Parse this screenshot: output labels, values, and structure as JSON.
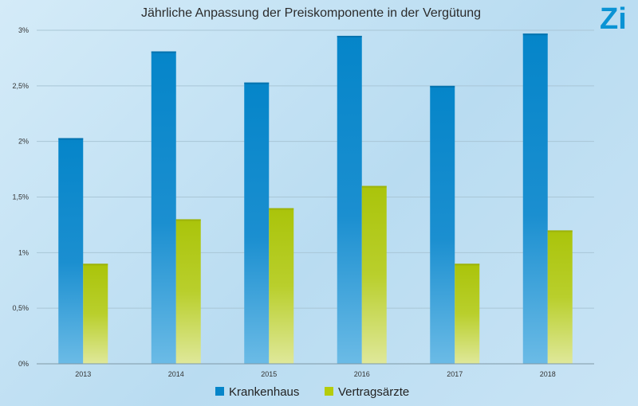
{
  "logo": {
    "text": "Zi",
    "color": "#0a93d4"
  },
  "chart_data": {
    "type": "bar",
    "title": "Jährliche  Anpassung der Preiskomponente in der Vergütung",
    "xlabel": "",
    "ylabel": "",
    "categories": [
      "2013",
      "2014",
      "2015",
      "2016",
      "2017",
      "2018"
    ],
    "series": [
      {
        "name": "Krankenhaus",
        "color": "#0585c9",
        "values": [
          2.03,
          2.81,
          2.53,
          2.95,
          2.5,
          2.97
        ]
      },
      {
        "name": "Vertragsärzte",
        "color": "#b5cc0b",
        "values": [
          0.9,
          1.3,
          1.4,
          1.6,
          0.9,
          1.2
        ]
      }
    ],
    "ylim": [
      0,
      3
    ],
    "yticks": [
      0,
      0.5,
      1,
      1.5,
      2,
      2.5,
      3
    ],
    "ytick_labels": [
      "0%",
      "0,5%",
      "1%",
      "1,5%",
      "2%",
      "2,5%",
      "3%"
    ],
    "grid": true,
    "legend_position": "bottom"
  }
}
